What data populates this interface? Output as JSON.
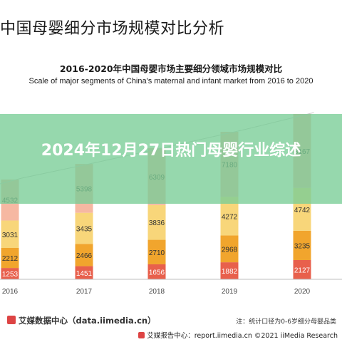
{
  "page": {
    "title": "中国母婴细分市场规模对比分析",
    "overlay_title": "2024年12月27日热门母婴行业综述"
  },
  "source": {
    "left_text": "艾媒数据中心（data.iimedia.cn）",
    "note": "注：统计口径为0-6岁细分母婴品类",
    "watermark": "艾媒报告中心：report.iimedia.cn  ©2021  iiMedia Research"
  },
  "chart_data": {
    "type": "bar",
    "stacked": true,
    "title": "2016-2020年中国母婴市场主要细分领域市场规模对比",
    "subtitle": "Scale of major segments of China's maternal and infant market from 2016 to 2020",
    "categories": [
      "2016",
      "2017",
      "2018",
      "2019",
      "2020"
    ],
    "series": [
      {
        "color": "#e8604c",
        "values": [
          1253,
          1451,
          1656,
          1882,
          2127
        ]
      },
      {
        "color": "#f1a52d",
        "values": [
          2212,
          2466,
          2710,
          2968,
          3235
        ]
      },
      {
        "color": "#f8d67a",
        "values": [
          3031,
          3435,
          3836,
          4272,
          4742
        ]
      },
      {
        "color": "#f6b8a2",
        "values": [
          4532,
          5398,
          6309,
          7180,
          8167
        ]
      }
    ],
    "trend_line": true,
    "grid": false,
    "legend": "none"
  }
}
